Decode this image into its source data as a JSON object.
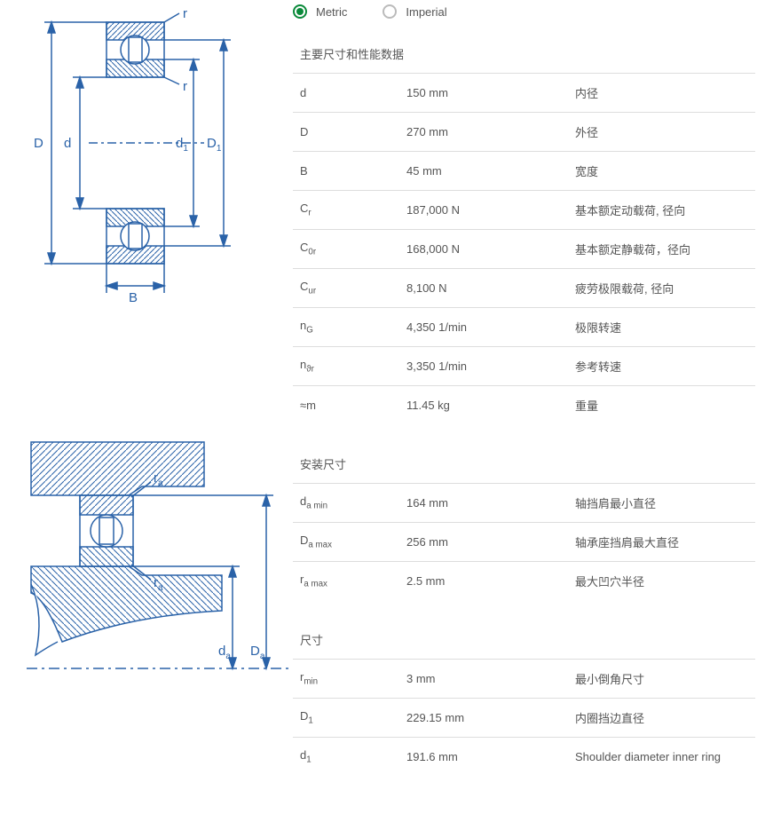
{
  "units": {
    "metric": "Metric",
    "imperial": "Imperial",
    "selected": "metric"
  },
  "sections": [
    {
      "title": "主要尺寸和性能数据",
      "rows": [
        {
          "symbol": "d",
          "sub": "",
          "value": "150 mm",
          "desc": "内径"
        },
        {
          "symbol": "D",
          "sub": "",
          "value": "270 mm",
          "desc": "外径"
        },
        {
          "symbol": "B",
          "sub": "",
          "value": "45 mm",
          "desc": "宽度"
        },
        {
          "symbol": "C",
          "sub": "r",
          "value": "187,000 N",
          "desc": "基本额定动载荷, 径向"
        },
        {
          "symbol": "C",
          "sub": "0r",
          "value": "168,000 N",
          "desc": "基本额定静载荷，径向"
        },
        {
          "symbol": "C",
          "sub": "ur",
          "value": "8,100 N",
          "desc": "疲劳极限载荷, 径向"
        },
        {
          "symbol": "n",
          "sub": "G",
          "value": "4,350 1/min",
          "desc": "极限转速"
        },
        {
          "symbol": "n",
          "sub": "ϑr",
          "value": "3,350 1/min",
          "desc": "参考转速"
        },
        {
          "symbol": "≈m",
          "sub": "",
          "value": "11.45 kg",
          "desc": "重量"
        }
      ]
    },
    {
      "title": "安装尺寸",
      "rows": [
        {
          "symbol": "d",
          "sub": "a min",
          "value": "164 mm",
          "desc": "轴挡肩最小直径"
        },
        {
          "symbol": "D",
          "sub": "a max",
          "value": "256 mm",
          "desc": "轴承座挡肩最大直径"
        },
        {
          "symbol": "r",
          "sub": "a max",
          "value": "2.5 mm",
          "desc": "最大凹穴半径"
        }
      ]
    },
    {
      "title": "尺寸",
      "rows": [
        {
          "symbol": "r",
          "sub": "min",
          "value": "3 mm",
          "desc": "最小倒角尺寸"
        },
        {
          "symbol": "D",
          "sub": "1",
          "value": "229.15 mm",
          "desc": "内圈挡边直径"
        },
        {
          "symbol": "d",
          "sub": "1",
          "value": "191.6 mm",
          "desc": "Shoulder diameter inner ring"
        }
      ]
    }
  ],
  "diagram1": {
    "stroke": "#2a62a8",
    "hatch": "#2a62a8",
    "labels": {
      "D": "D",
      "d": "d",
      "d1": "d",
      "d1sub": "1",
      "D1": "D",
      "D1sub": "1",
      "B": "B",
      "r": "r"
    }
  },
  "diagram2": {
    "stroke": "#2a62a8",
    "labels": {
      "ra": "r",
      "rasub": "a",
      "da": "d",
      "dasub": "a",
      "Da": "D",
      "Dasub": "a"
    }
  }
}
